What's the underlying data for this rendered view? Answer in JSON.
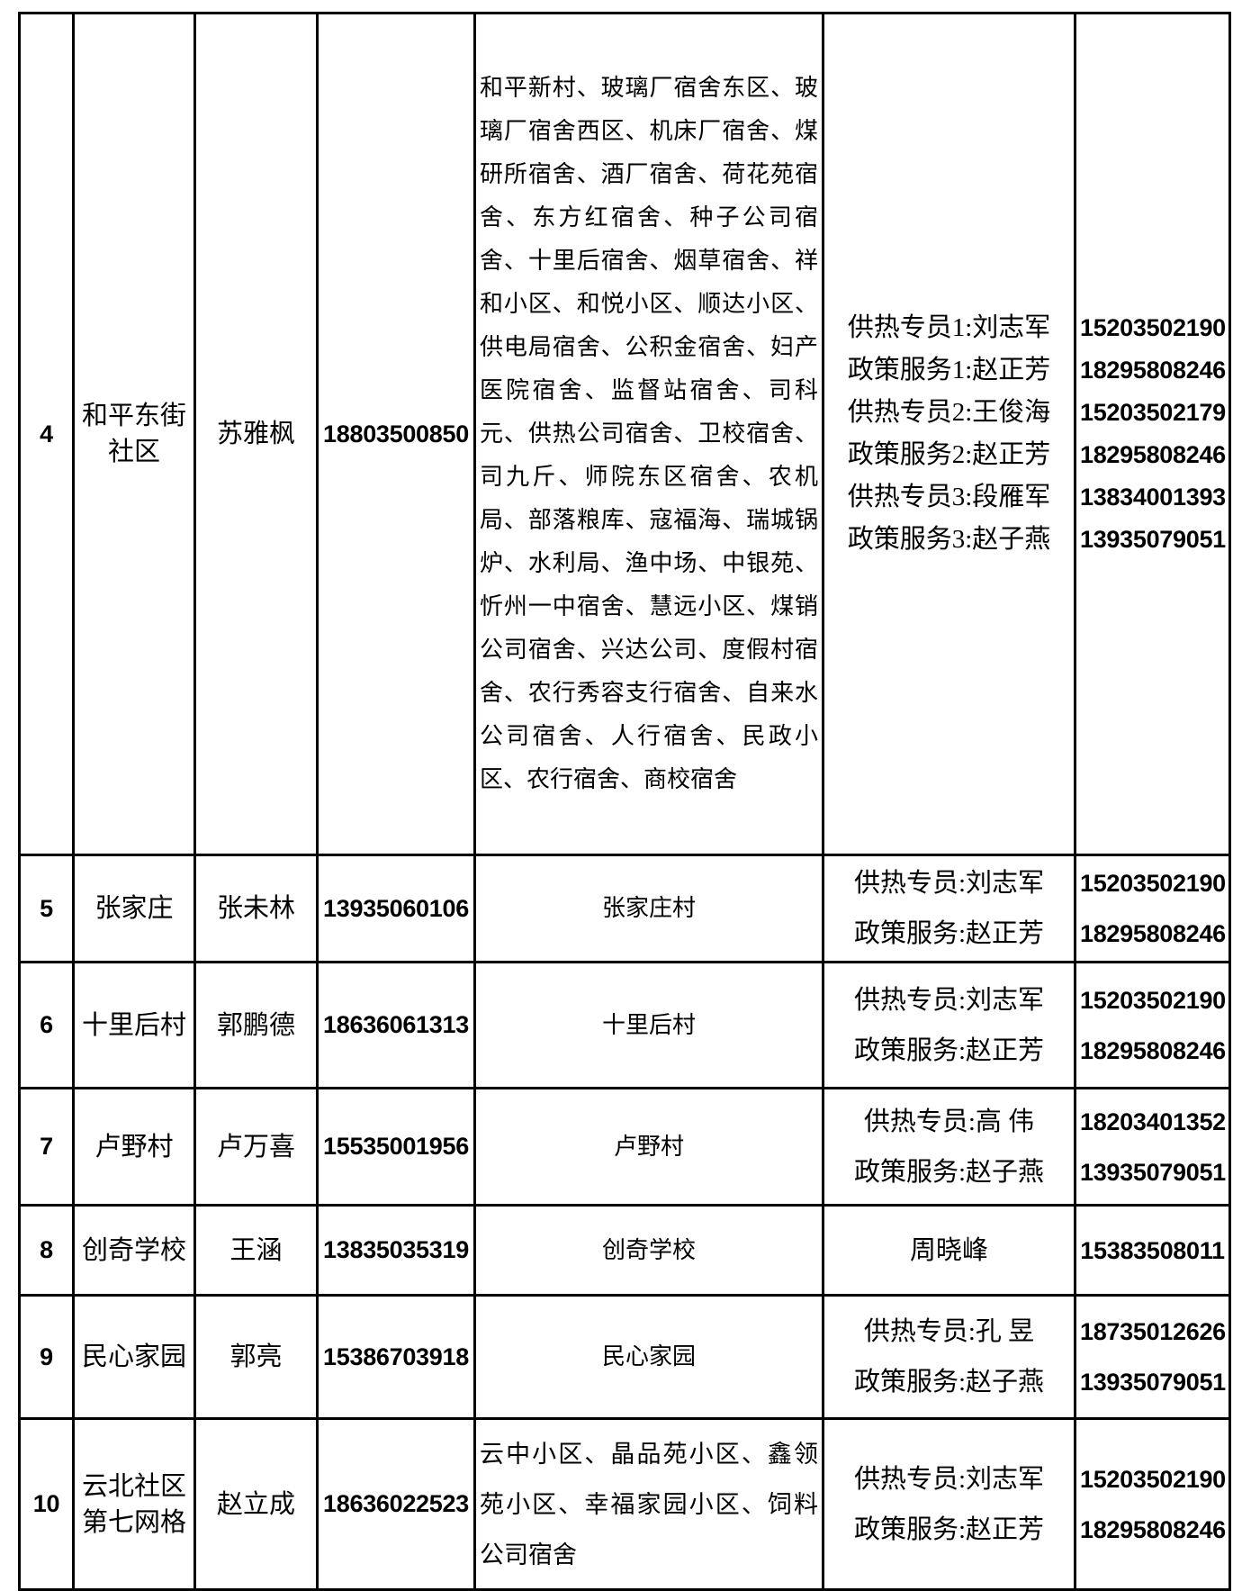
{
  "table": {
    "rows": [
      {
        "index": "4",
        "name": "和平东街社区",
        "contact": "苏雅枫",
        "phone": "18803500850",
        "coverage": "和平新村、玻璃厂宿舍东区、玻璃厂宿舍西区、机床厂宿舍、煤研所宿舍、酒厂宿舍、荷花苑宿舍、东方红宿舍、种子公司宿舍、十里后宿舍、烟草宿舍、祥和小区、和悦小区、顺达小区、供电局宿舍、公积金宿舍、妇产医院宿舍、监督站宿舍、司科元、供热公司宿舍、卫校宿舍、司九斤、师院东区宿舍、农机局、部落粮库、寇福海、瑞城锅炉、水利局、渔中场、中银苑、忻州一中宿舍、慧远小区、煤销公司宿舍、兴达公司、度假村宿舍、农行秀容支行宿舍、自来水公司宿舍、人行宿舍、民政小区、农行宿舍、商校宿舍",
        "staff": [
          "供热专员1:刘志军",
          "政策服务1:赵正芳",
          "供热专员2:王俊海",
          "政策服务2:赵正芳",
          "供热专员3:段雁军",
          "政策服务3:赵子燕"
        ],
        "staff_phones": [
          "15203502190",
          "18295808246",
          "15203502179",
          "18295808246",
          "13834001393",
          "13935079051"
        ]
      },
      {
        "index": "5",
        "name": "张家庄",
        "contact": "张未林",
        "phone": "13935060106",
        "coverage": "张家庄村",
        "staff": [
          "供热专员:刘志军",
          "政策服务:赵正芳"
        ],
        "staff_phones": [
          "15203502190",
          "18295808246"
        ]
      },
      {
        "index": "6",
        "name": "十里后村",
        "contact": "郭鹏德",
        "phone": "18636061313",
        "coverage": "十里后村",
        "staff": [
          "供热专员:刘志军",
          "政策服务:赵正芳"
        ],
        "staff_phones": [
          "15203502190",
          "18295808246"
        ]
      },
      {
        "index": "7",
        "name": "卢野村",
        "contact": "卢万喜",
        "phone": "15535001956",
        "coverage": "卢野村",
        "staff": [
          "供热专员:高 伟",
          "政策服务:赵子燕"
        ],
        "staff_phones": [
          "18203401352",
          "13935079051"
        ]
      },
      {
        "index": "8",
        "name": "创奇学校",
        "contact": "王涵",
        "phone": "13835035319",
        "coverage": "创奇学校",
        "staff": [
          "周晓峰"
        ],
        "staff_phones": [
          "15383508011"
        ]
      },
      {
        "index": "9",
        "name": "民心家园",
        "contact": "郭亮",
        "phone": "15386703918",
        "coverage": "民心家园",
        "staff": [
          "供热专员:孔 昱",
          "政策服务:赵子燕"
        ],
        "staff_phones": [
          "18735012626",
          "13935079051"
        ]
      },
      {
        "index": "10",
        "name": "云北社区第七网格",
        "contact": "赵立成",
        "phone": "18636022523",
        "coverage": "云中小区、晶品苑小区、鑫领苑小区、幸福家园小区、饲料公司宿舍",
        "staff": [
          "供热专员:刘志军",
          "政策服务:赵正芳"
        ],
        "staff_phones": [
          "15203502190",
          "18295808246"
        ]
      }
    ]
  }
}
